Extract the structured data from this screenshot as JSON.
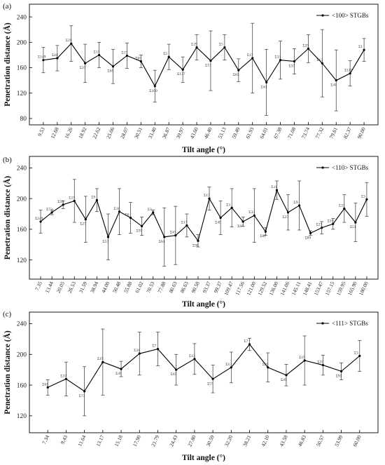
{
  "chart_data": [
    {
      "type": "line",
      "panel_label": "(a)",
      "legend": "<100> STGBs",
      "legend_position": "top-right",
      "xlabel": "Tilt angle (°)",
      "ylabel": "Penetration distance (Å)",
      "ylim": [
        70,
        260
      ],
      "yticks": [
        80,
        120,
        160,
        200,
        240
      ],
      "grid": false,
      "categories": [
        "9.53",
        "12.68",
        "16.26",
        "18.92",
        "22.62",
        "25.06",
        "28.07",
        "30.51",
        "33.40",
        "36.87",
        "39.97",
        "43.60",
        "46.40",
        "53.13",
        "59.49",
        "61.93",
        "64.01",
        "67.38",
        "71.08",
        "73.74",
        "77.32",
        "79.61",
        "82.37",
        "90.00"
      ],
      "point_labels": [
        "Σ149",
        "Σ41",
        "Σ29",
        "Σ37",
        "Σ13",
        "Σ65",
        "Σ17",
        "Σ65",
        "Σ109",
        "Σ5",
        "Σ137",
        "Σ29",
        "Σ13",
        "Σ5",
        "Σ65",
        "Σ17",
        "Σ41",
        "Σ13",
        "Σ37",
        "Σ29",
        "Σ13",
        "Σ41",
        "Σ113",
        "Σ1"
      ],
      "values": [
        172,
        175,
        198,
        167,
        180,
        162,
        179,
        170,
        131,
        177,
        157,
        192,
        171,
        192,
        156,
        175,
        137,
        172,
        170,
        190,
        167,
        140,
        151,
        188
      ],
      "errors": [
        20,
        20,
        28,
        30,
        20,
        27,
        20,
        10,
        25,
        20,
        20,
        20,
        47,
        20,
        18,
        55,
        52,
        30,
        20,
        22,
        53,
        48,
        20,
        18
      ]
    },
    {
      "type": "line",
      "panel_label": "(b)",
      "legend": "<110> STGBs",
      "legend_position": "top-right",
      "xlabel": "Tilt angle (°)",
      "ylabel": "Penetration distance (Å)",
      "ylim": [
        95,
        255
      ],
      "yticks": [
        120,
        160,
        200,
        240
      ],
      "grid": false,
      "categories": [
        "7.35",
        "13.44",
        "20.05",
        "26.53",
        "31.59",
        "38.94",
        "44.00",
        "50.48",
        "55.88",
        "61.02",
        "70.53",
        "77.88",
        "80.63",
        "86.63",
        "90.58",
        "93.37",
        "99.37",
        "109.47",
        "117.56",
        "121.00",
        "129.52",
        "136.00",
        "141.06",
        "145.11",
        "148.41",
        "153.47",
        "157.15",
        "159.95",
        "165.90",
        "180.00"
      ],
      "point_labels": [
        "Σ249",
        "Σ73",
        "Σ59",
        "Σ19",
        "Σ27",
        "Σ9",
        "Σ57",
        "Σ11",
        "Σ6",
        "Σ97",
        "Σ3",
        "Σ81",
        "Σ43",
        "Σ17",
        "Σ99",
        "Σ17",
        "Σ49",
        "Σ3",
        "Σ67",
        "Σ33",
        "Σ81",
        "Σ11",
        "Σ27",
        "Σ9",
        "Σ89",
        "Σ27",
        "Σ19",
        "Σ33",
        "Σ51",
        "Σ3"
      ],
      "values": [
        170,
        182,
        192,
        197,
        173,
        198,
        150,
        183,
        175,
        164,
        182,
        150,
        152,
        165,
        145,
        200,
        175,
        188,
        170,
        178,
        157,
        211,
        182,
        191,
        155,
        162,
        167,
        187,
        169,
        199
      ],
      "errors": [
        15,
        3,
        5,
        28,
        30,
        15,
        30,
        30,
        20,
        12,
        3,
        38,
        38,
        15,
        8,
        15,
        22,
        25,
        6,
        35,
        5,
        12,
        23,
        32,
        3,
        8,
        7,
        18,
        25,
        22
      ]
    },
    {
      "type": "line",
      "panel_label": "(c)",
      "legend": "<111> STGBs",
      "legend_position": "top-right",
      "xlabel": "Tilt angle (°)",
      "ylabel": "Penetration distance (Å)",
      "ylim": [
        98,
        255
      ],
      "yticks": [
        120,
        160,
        200,
        240
      ],
      "grid": false,
      "categories": [
        "7.34",
        "9.43",
        "11.64",
        "13.17",
        "15.18",
        "17.90",
        "21.79",
        "24.43",
        "27.80",
        "30.59",
        "32.20",
        "38.21",
        "42.10",
        "43.58",
        "46.83",
        "50.57",
        "53.99",
        "60.00"
      ],
      "point_labels": [
        "Σ61",
        "Σ37",
        "Σ73",
        "Σ19",
        "Σ49",
        "Σ31",
        "Σ7",
        "Σ67",
        "Σ13",
        "Σ57",
        "Σ13",
        "Σ7",
        "Σ39",
        "Σ49",
        "Σ19",
        "Σ37",
        "Σ91",
        "Σ3"
      ],
      "values": [
        157,
        168,
        152,
        190,
        181,
        201,
        207,
        180,
        194,
        168,
        183,
        213,
        183,
        173,
        192,
        186,
        178,
        198
      ],
      "errors": [
        10,
        22,
        32,
        43,
        10,
        28,
        22,
        20,
        20,
        18,
        20,
        8,
        19,
        14,
        32,
        13,
        11,
        20
      ]
    }
  ]
}
